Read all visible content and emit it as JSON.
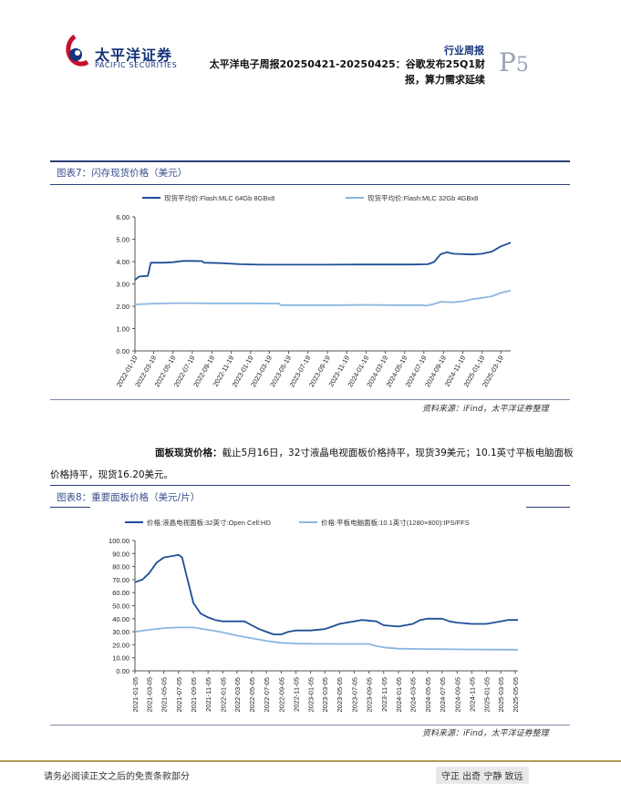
{
  "header": {
    "brand_cn": "太平洋证券",
    "brand_en": "PACIFIC SECURITIES",
    "report_type": "行业周报",
    "title": "太平洋电子周报20250421-20250425：谷歌发布25Q1财报，算力需求延续",
    "page_prefix": "P",
    "page_number": "5"
  },
  "figure7": {
    "title": "图表7：闪存现货价格（美元）",
    "source": "资料来源：iFind，太平洋证券整理",
    "chart_data": {
      "type": "line",
      "series": [
        {
          "name": "现货平均价:Flash:MLC 64Gb 8GBx8",
          "color": "#1f4e96",
          "points": [
            [
              "2022-01-19",
              3.18
            ],
            [
              "2022-02-01",
              3.33
            ],
            [
              "2022-03-01",
              3.36
            ],
            [
              "2022-03-10",
              3.95
            ],
            [
              "2022-04-19",
              3.95
            ],
            [
              "2022-05-19",
              3.97
            ],
            [
              "2022-06-19",
              4.03
            ],
            [
              "2022-07-19",
              4.03
            ],
            [
              "2022-08-19",
              4.02
            ],
            [
              "2022-08-25",
              3.95
            ],
            [
              "2022-10-19",
              3.93
            ],
            [
              "2022-12-19",
              3.88
            ],
            [
              "2023-02-19",
              3.86
            ],
            [
              "2023-05-19",
              3.86
            ],
            [
              "2023-09-19",
              3.86
            ],
            [
              "2023-12-19",
              3.87
            ],
            [
              "2024-03-19",
              3.87
            ],
            [
              "2024-06-19",
              3.87
            ],
            [
              "2024-08-01",
              3.88
            ],
            [
              "2024-08-20",
              3.98
            ],
            [
              "2024-09-10",
              4.33
            ],
            [
              "2024-09-30",
              4.42
            ],
            [
              "2024-10-20",
              4.35
            ],
            [
              "2024-12-19",
              4.32
            ],
            [
              "2025-01-19",
              4.35
            ],
            [
              "2025-02-19",
              4.45
            ],
            [
              "2025-03-19",
              4.68
            ],
            [
              "2025-04-19",
              4.85
            ]
          ]
        },
        {
          "name": "现货平均价:Flash:MLC 32Gb 4GBx8",
          "color": "#8ab6e0",
          "points": [
            [
              "2022-01-19",
              2.08
            ],
            [
              "2022-03-19",
              2.12
            ],
            [
              "2022-05-19",
              2.14
            ],
            [
              "2022-07-19",
              2.14
            ],
            [
              "2022-09-19",
              2.13
            ],
            [
              "2022-11-19",
              2.13
            ],
            [
              "2023-01-19",
              2.13
            ],
            [
              "2023-04-19",
              2.12
            ],
            [
              "2023-04-25",
              2.05
            ],
            [
              "2023-07-19",
              2.05
            ],
            [
              "2023-10-19",
              2.05
            ],
            [
              "2024-01-19",
              2.06
            ],
            [
              "2024-04-19",
              2.05
            ],
            [
              "2024-07-19",
              2.05
            ],
            [
              "2024-07-25",
              2.02
            ],
            [
              "2024-08-19",
              2.1
            ],
            [
              "2024-09-10",
              2.2
            ],
            [
              "2024-10-19",
              2.18
            ],
            [
              "2024-11-19",
              2.22
            ],
            [
              "2024-12-19",
              2.32
            ],
            [
              "2025-01-19",
              2.37
            ],
            [
              "2025-02-19",
              2.45
            ],
            [
              "2025-03-19",
              2.6
            ],
            [
              "2025-04-19",
              2.7
            ]
          ]
        }
      ],
      "x_ticks": [
        "2022-01-19",
        "2022-03-19",
        "2022-05-19",
        "2022-07-19",
        "2022-09-19",
        "2022-11-19",
        "2023-01-19",
        "2023-03-19",
        "2023-05-19",
        "2023-07-19",
        "2023-09-19",
        "2023-11-19",
        "2024-01-19",
        "2024-03-19",
        "2024-05-19",
        "2024-07-19",
        "2024-09-19",
        "2024-11-19",
        "2025-01-19",
        "2025-03-19"
      ],
      "x_range": [
        "2022-01-19",
        "2025-04-19"
      ],
      "y_ticks": [
        "0.00",
        "1.00",
        "2.00",
        "3.00",
        "4.00",
        "5.00",
        "6.00"
      ],
      "ylim": [
        0,
        6
      ]
    }
  },
  "paragraph": {
    "lead": "面板现货价格：",
    "body": "截止5月16日，32寸液晶电视面板价格持平，现货39美元；10.1英寸平板电脑面板价格持平，现货16.20美元。"
  },
  "figure8": {
    "title": "图表8：重要面板价格（美元/片）",
    "source": "资料来源：iFind，太平洋证券整理",
    "chart_data": {
      "type": "line",
      "series": [
        {
          "name": "价格:液晶电视面板:32英寸:Open Cell:HD",
          "color": "#1f4e96",
          "points": [
            [
              "2021-01-05",
              68
            ],
            [
              "2021-02-05",
              70
            ],
            [
              "2021-03-05",
              75
            ],
            [
              "2021-04-05",
              83
            ],
            [
              "2021-05-05",
              87
            ],
            [
              "2021-06-05",
              88
            ],
            [
              "2021-07-05",
              89
            ],
            [
              "2021-07-20",
              87
            ],
            [
              "2021-08-05",
              75
            ],
            [
              "2021-09-05",
              52
            ],
            [
              "2021-10-05",
              44
            ],
            [
              "2021-11-05",
              41
            ],
            [
              "2021-12-05",
              39
            ],
            [
              "2022-01-05",
              38
            ],
            [
              "2022-03-05",
              38
            ],
            [
              "2022-04-05",
              38
            ],
            [
              "2022-05-05",
              35
            ],
            [
              "2022-06-05",
              32
            ],
            [
              "2022-07-05",
              30
            ],
            [
              "2022-08-05",
              28
            ],
            [
              "2022-09-05",
              28
            ],
            [
              "2022-10-05",
              30
            ],
            [
              "2022-11-05",
              31
            ],
            [
              "2023-01-05",
              31
            ],
            [
              "2023-03-05",
              32
            ],
            [
              "2023-04-05",
              34
            ],
            [
              "2023-05-05",
              36
            ],
            [
              "2023-07-05",
              38
            ],
            [
              "2023-08-05",
              39
            ],
            [
              "2023-10-05",
              38
            ],
            [
              "2023-11-05",
              35
            ],
            [
              "2024-01-05",
              34
            ],
            [
              "2024-03-05",
              36
            ],
            [
              "2024-04-05",
              39
            ],
            [
              "2024-05-05",
              40
            ],
            [
              "2024-07-05",
              40
            ],
            [
              "2024-08-05",
              38
            ],
            [
              "2024-09-05",
              37
            ],
            [
              "2024-11-05",
              36
            ],
            [
              "2025-01-05",
              36
            ],
            [
              "2025-03-05",
              38
            ],
            [
              "2025-04-05",
              39
            ],
            [
              "2025-05-16",
              39
            ]
          ]
        },
        {
          "name": "价格:平板电脑面板:10.1英寸(1280×800):IPS/FFS",
          "color": "#8ab6e0",
          "points": [
            [
              "2021-01-05",
              30
            ],
            [
              "2021-03-05",
              31.5
            ],
            [
              "2021-05-05",
              32.8
            ],
            [
              "2021-07-05",
              33.3
            ],
            [
              "2021-09-05",
              33.3
            ],
            [
              "2021-11-05",
              31.5
            ],
            [
              "2022-01-05",
              29.5
            ],
            [
              "2022-03-05",
              27
            ],
            [
              "2022-05-05",
              25
            ],
            [
              "2022-07-05",
              23
            ],
            [
              "2022-09-05",
              21.5
            ],
            [
              "2022-11-05",
              21
            ],
            [
              "2023-01-05",
              20.8
            ],
            [
              "2023-05-05",
              20.6
            ],
            [
              "2023-09-05",
              20.6
            ],
            [
              "2023-10-05",
              19
            ],
            [
              "2023-11-05",
              18
            ],
            [
              "2024-01-05",
              17
            ],
            [
              "2024-05-05",
              16.7
            ],
            [
              "2024-09-05",
              16.5
            ],
            [
              "2025-01-05",
              16.3
            ],
            [
              "2025-05-16",
              16.2
            ]
          ]
        }
      ],
      "x_ticks": [
        "2021-01-05",
        "2021-03-05",
        "2021-05-05",
        "2021-07-05",
        "2021-09-05",
        "2021-11-05",
        "2022-01-05",
        "2022-03-05",
        "2022-05-05",
        "2022-07-05",
        "2022-09-05",
        "2022-11-05",
        "2023-01-05",
        "2023-03-05",
        "2023-05-05",
        "2023-07-05",
        "2023-09-05",
        "2023-11-05",
        "2024-01-05",
        "2024-03-05",
        "2024-05-05",
        "2024-07-05",
        "2024-09-05",
        "2024-11-05",
        "2025-01-05",
        "2025-03-05",
        "2025-05-05"
      ],
      "x_range": [
        "2021-01-05",
        "2025-05-16"
      ],
      "y_ticks": [
        "0.00",
        "10.00",
        "20.00",
        "30.00",
        "40.00",
        "50.00",
        "60.00",
        "70.00",
        "80.00",
        "90.00",
        "100.00"
      ],
      "ylim": [
        0,
        100
      ]
    }
  },
  "footer": {
    "disclaimer": "请务必阅读正文之后的免责条款部分",
    "motto": "守正 出奇 宁静 致远"
  }
}
